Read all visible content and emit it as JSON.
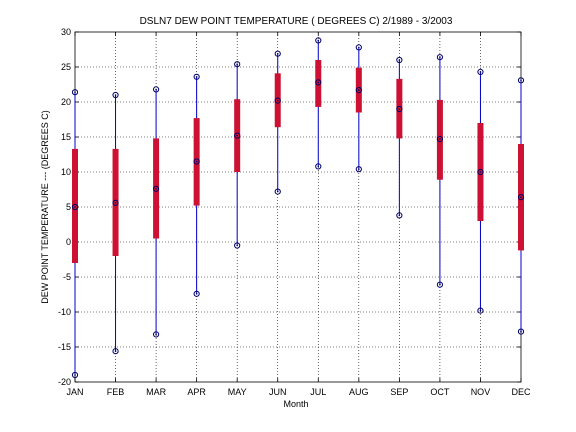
{
  "chart_data": {
    "type": "box",
    "title": "DSLN7  DEW POINT TEMPERATURE ( DEGREES C) 2/1989 - 3/2003",
    "xlabel": "Month",
    "ylabel": "DEW POINT TEMPERATURE --- (DEGREES C)",
    "categories": [
      "JAN",
      "FEB",
      "MAR",
      "APR",
      "MAY",
      "JUN",
      "JUL",
      "AUG",
      "SEP",
      "OCT",
      "NOV",
      "DEC"
    ],
    "ylim": [
      -20,
      30
    ],
    "yticks": [
      -20,
      -15,
      -10,
      -5,
      0,
      5,
      10,
      15,
      20,
      25,
      30
    ],
    "grid": true,
    "colors": {
      "whisker": "#0000cc",
      "box": "#cc1133",
      "marker": "#000066",
      "grid": "#000000"
    },
    "series": [
      {
        "min": -19.0,
        "q1": -3.0,
        "median": 5.0,
        "q3": 13.3,
        "max": 21.4
      },
      {
        "min": -15.6,
        "q1": -2.0,
        "median": 5.6,
        "q3": 13.3,
        "max": 21.0
      },
      {
        "min": -13.2,
        "q1": 0.5,
        "median": 7.6,
        "q3": 14.8,
        "max": 21.8
      },
      {
        "min": -7.4,
        "q1": 5.2,
        "median": 11.5,
        "q3": 17.7,
        "max": 23.6
      },
      {
        "min": -0.5,
        "q1": 10.0,
        "median": 15.2,
        "q3": 20.4,
        "max": 25.4
      },
      {
        "min": 7.2,
        "q1": 16.4,
        "median": 20.2,
        "q3": 24.1,
        "max": 26.9
      },
      {
        "min": 10.8,
        "q1": 19.3,
        "median": 22.8,
        "q3": 26.0,
        "max": 28.8
      },
      {
        "min": 10.4,
        "q1": 18.5,
        "median": 21.7,
        "q3": 24.9,
        "max": 27.8
      },
      {
        "min": 3.8,
        "q1": 14.8,
        "median": 19.0,
        "q3": 23.3,
        "max": 26.0
      },
      {
        "min": -6.1,
        "q1": 8.9,
        "median": 14.7,
        "q3": 20.3,
        "max": 26.4
      },
      {
        "min": -9.8,
        "q1": 3.0,
        "median": 10.0,
        "q3": 17.0,
        "max": 24.3
      },
      {
        "min": -12.8,
        "q1": -1.2,
        "median": 6.4,
        "q3": 14.0,
        "max": 23.1
      }
    ]
  }
}
